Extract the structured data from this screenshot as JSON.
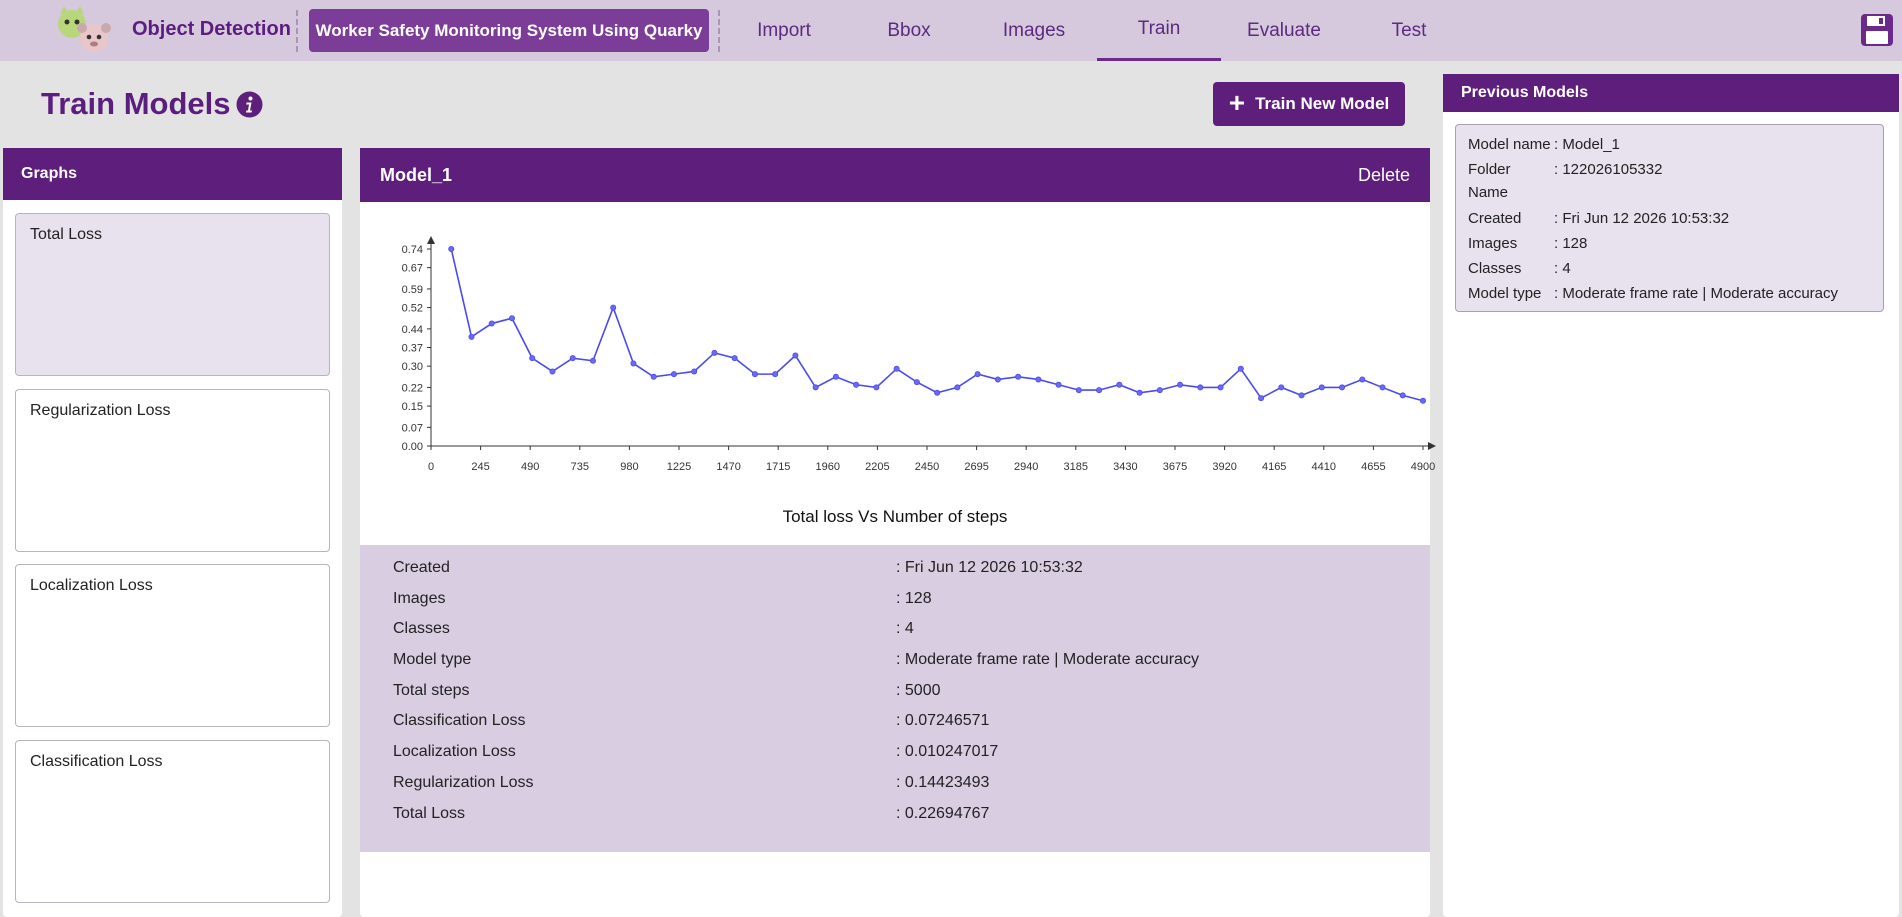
{
  "header": {
    "app_title": "Object Detection",
    "project_name": "Worker Safety Monitoring System Using Quarky",
    "tabs": [
      {
        "label": "Import",
        "active": false
      },
      {
        "label": "Bbox",
        "active": false
      },
      {
        "label": "Images",
        "active": false
      },
      {
        "label": "Train",
        "active": true
      },
      {
        "label": "Evaluate",
        "active": false
      },
      {
        "label": "Test",
        "active": false
      }
    ],
    "save_icon": "floppy-disk-icon"
  },
  "page": {
    "title": "Train Models",
    "info_icon": "info-icon",
    "train_button": "Train New Model"
  },
  "graphs_panel": {
    "title": "Graphs",
    "items": [
      "Total Loss",
      "Regularization Loss",
      "Localization Loss",
      "Classification Loss"
    ],
    "selected_index": 0
  },
  "model_panel": {
    "title": "Model_1",
    "delete_label": "Delete",
    "details": [
      {
        "label": "Created",
        "value": ": Fri Jun 12 2026 10:53:32"
      },
      {
        "label": "Images",
        "value": ": 128"
      },
      {
        "label": "Classes",
        "value": ": 4"
      },
      {
        "label": "Model type",
        "value": ": Moderate frame rate | Moderate accuracy"
      },
      {
        "label": "Total steps",
        "value": ": 5000"
      },
      {
        "label": "Classification Loss",
        "value": ": 0.07246571"
      },
      {
        "label": "Localization Loss",
        "value": ": 0.010247017"
      },
      {
        "label": "Regularization Loss",
        "value": ": 0.14423493"
      },
      {
        "label": "Total Loss",
        "value": ": 0.22694767"
      }
    ]
  },
  "previous_models": {
    "title": "Previous Models",
    "model": {
      "name_label": "Model name",
      "name": ": Model_1",
      "folder_label": "Folder",
      "folder_label_2": "Name",
      "folder": ": 122026105332",
      "created_label": "Created",
      "created": ": Fri Jun 12 2026 10:53:32",
      "images_label": "Images",
      "images": ": 128",
      "classes_label": "Classes",
      "classes": ": 4",
      "type_label": "Model type",
      "type": ": Moderate frame rate | Moderate accuracy"
    }
  },
  "chart_data": {
    "type": "line",
    "title": "Total loss Vs Number of steps",
    "xlabel": "",
    "ylabel": "",
    "xlim": [
      0,
      4900
    ],
    "ylim": [
      0,
      0.74
    ],
    "x_ticks": [
      "0",
      "245",
      "490",
      "735",
      "980",
      "1225",
      "1470",
      "1715",
      "1960",
      "2205",
      "2450",
      "2695",
      "2940",
      "3185",
      "3430",
      "3675",
      "3920",
      "4165",
      "4410",
      "4655",
      "4900"
    ],
    "y_ticks": [
      "0.00",
      "0.07",
      "0.15",
      "0.22",
      "0.30",
      "0.37",
      "0.44",
      "0.52",
      "0.59",
      "0.67",
      "0.74"
    ],
    "line_color": "#4a4af0",
    "grid": false,
    "series": [
      {
        "x": [
          100,
          200,
          300,
          400,
          500,
          600,
          700,
          800,
          900,
          1000,
          1100,
          1200,
          1300,
          1400,
          1500,
          1600,
          1700,
          1800,
          1900,
          2000,
          2100,
          2200,
          2300,
          2400,
          2500,
          2600,
          2700,
          2800,
          2900,
          3000,
          3100,
          3200,
          3300,
          3400,
          3500,
          3600,
          3700,
          3800,
          3900,
          4000,
          4100,
          4200,
          4300,
          4400,
          4500,
          4600,
          4700,
          4800,
          4900
        ],
        "y": [
          0.74,
          0.41,
          0.46,
          0.48,
          0.33,
          0.28,
          0.33,
          0.32,
          0.52,
          0.31,
          0.26,
          0.27,
          0.28,
          0.35,
          0.33,
          0.27,
          0.27,
          0.34,
          0.22,
          0.26,
          0.23,
          0.22,
          0.29,
          0.24,
          0.2,
          0.22,
          0.27,
          0.25,
          0.26,
          0.25,
          0.23,
          0.21,
          0.21,
          0.23,
          0.2,
          0.21,
          0.23,
          0.22,
          0.22,
          0.29,
          0.18,
          0.22,
          0.19,
          0.22,
          0.22,
          0.25,
          0.22,
          0.19,
          0.17
        ]
      }
    ]
  }
}
